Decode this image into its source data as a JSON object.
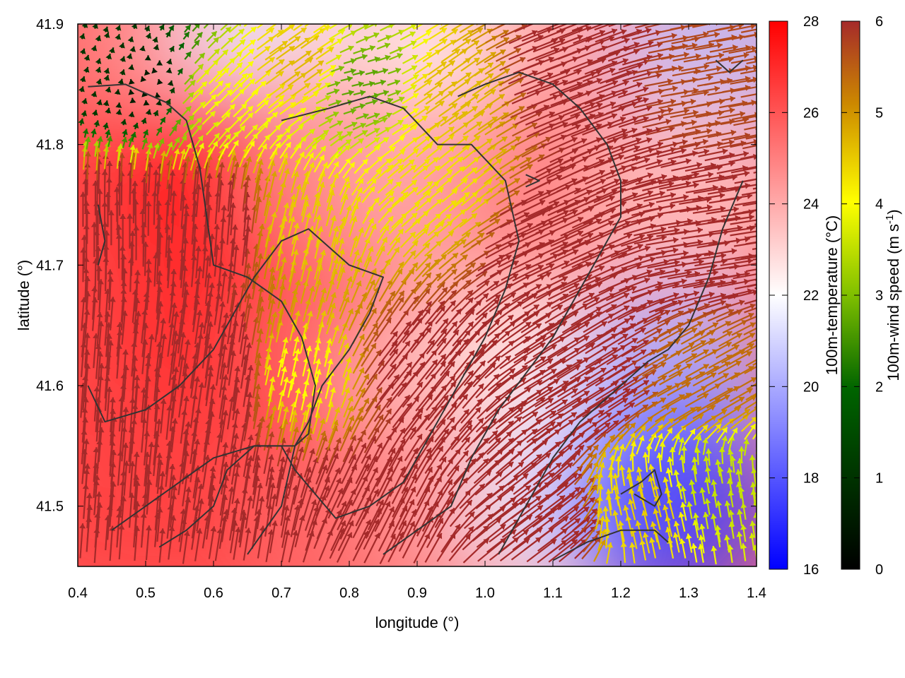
{
  "chart_data": {
    "type": "heatmap",
    "title": "",
    "xlabel": "longitude (°)",
    "ylabel": "latitude (°)",
    "xlim": [
      0.4,
      1.4
    ],
    "ylim": [
      41.45,
      41.9
    ],
    "x_ticks": [
      "0.4",
      "0.5",
      "0.6",
      "0.7",
      "0.8",
      "0.9",
      "1.0",
      "1.1",
      "1.2",
      "1.3",
      "1.4"
    ],
    "y_ticks": [
      "41.5",
      "41.6",
      "41.7",
      "41.8",
      "41.9"
    ],
    "grid": false,
    "temperature_colorbar": {
      "label": "100m-temperature (°C)",
      "range": [
        16,
        28
      ],
      "ticks": [
        "16",
        "18",
        "20",
        "22",
        "24",
        "26",
        "28"
      ],
      "colors": [
        "#0000ff",
        "#ffffff",
        "#ff0000"
      ]
    },
    "wind_colorbar": {
      "label_main": "100m-wind speed (m s",
      "label_sup": "-1",
      "label_end": ")",
      "range": [
        0,
        6
      ],
      "ticks": [
        "0",
        "1",
        "2",
        "3",
        "4",
        "5",
        "6"
      ],
      "colors": [
        "#000000",
        "#006400",
        "#7fbf00",
        "#ffff00",
        "#cc8800",
        "#a52a2a"
      ]
    },
    "temperature_field": [
      {
        "lon": 0.45,
        "lat": 41.86,
        "t": 26.0
      },
      {
        "lon": 0.55,
        "lat": 41.88,
        "t": 24.5
      },
      {
        "lon": 0.7,
        "lat": 41.89,
        "t": 21.5
      },
      {
        "lon": 0.85,
        "lat": 41.87,
        "t": 23.0
      },
      {
        "lon": 0.98,
        "lat": 41.86,
        "t": 22.5
      },
      {
        "lon": 1.15,
        "lat": 41.88,
        "t": 24.0
      },
      {
        "lon": 1.35,
        "lat": 41.88,
        "t": 20.5
      },
      {
        "lon": 0.45,
        "lat": 41.75,
        "t": 26.5
      },
      {
        "lon": 0.62,
        "lat": 41.76,
        "t": 27.5
      },
      {
        "lon": 0.8,
        "lat": 41.77,
        "t": 24.5
      },
      {
        "lon": 0.95,
        "lat": 41.75,
        "t": 24.0
      },
      {
        "lon": 1.1,
        "lat": 41.76,
        "t": 25.0
      },
      {
        "lon": 1.3,
        "lat": 41.75,
        "t": 23.5
      },
      {
        "lon": 0.45,
        "lat": 41.62,
        "t": 26.5
      },
      {
        "lon": 0.62,
        "lat": 41.65,
        "t": 27.0
      },
      {
        "lon": 0.8,
        "lat": 41.63,
        "t": 25.5
      },
      {
        "lon": 0.95,
        "lat": 41.6,
        "t": 23.5
      },
      {
        "lon": 1.1,
        "lat": 41.6,
        "t": 22.5
      },
      {
        "lon": 1.28,
        "lat": 41.6,
        "t": 20.0
      },
      {
        "lon": 0.45,
        "lat": 41.5,
        "t": 26.5
      },
      {
        "lon": 0.65,
        "lat": 41.5,
        "t": 26.5
      },
      {
        "lon": 0.8,
        "lat": 41.48,
        "t": 25.5
      },
      {
        "lon": 0.97,
        "lat": 41.49,
        "t": 24.5
      },
      {
        "lon": 1.12,
        "lat": 41.5,
        "t": 21.5
      },
      {
        "lon": 1.27,
        "lat": 41.5,
        "t": 17.5
      }
    ],
    "wind_field": [
      {
        "lon": 0.45,
        "lat": 41.86,
        "u": 0.2,
        "v": 0.6
      },
      {
        "lon": 0.5,
        "lat": 41.85,
        "u": -0.1,
        "v": 0.3
      },
      {
        "lon": 0.6,
        "lat": 41.84,
        "u": 2.5,
        "v": 2.5
      },
      {
        "lon": 0.72,
        "lat": 41.86,
        "u": 3.5,
        "v": 2.5
      },
      {
        "lon": 0.8,
        "lat": 41.85,
        "u": 2.0,
        "v": 0.5
      },
      {
        "lon": 0.95,
        "lat": 41.84,
        "u": 3.5,
        "v": 2.5
      },
      {
        "lon": 1.1,
        "lat": 41.85,
        "u": 6.5,
        "v": 2.5
      },
      {
        "lon": 1.3,
        "lat": 41.85,
        "u": 5.5,
        "v": 1.0
      },
      {
        "lon": 0.45,
        "lat": 41.72,
        "u": 0.0,
        "v": 7.0
      },
      {
        "lon": 0.6,
        "lat": 41.72,
        "u": 0.5,
        "v": 6.5
      },
      {
        "lon": 0.72,
        "lat": 41.72,
        "u": 1.0,
        "v": 4.0
      },
      {
        "lon": 0.92,
        "lat": 41.76,
        "u": 3.0,
        "v": 2.5
      },
      {
        "lon": 1.1,
        "lat": 41.72,
        "u": 6.5,
        "v": 3.0
      },
      {
        "lon": 1.3,
        "lat": 41.72,
        "u": 6.5,
        "v": 1.0
      },
      {
        "lon": 0.45,
        "lat": 41.58,
        "u": 0.5,
        "v": 7.0
      },
      {
        "lon": 0.6,
        "lat": 41.6,
        "u": 1.0,
        "v": 7.0
      },
      {
        "lon": 0.72,
        "lat": 41.6,
        "u": 0.8,
        "v": 3.5
      },
      {
        "lon": 0.9,
        "lat": 41.6,
        "u": 4.0,
        "v": 5.0
      },
      {
        "lon": 1.1,
        "lat": 41.6,
        "u": 6.5,
        "v": 4.0
      },
      {
        "lon": 1.3,
        "lat": 41.6,
        "u": 4.5,
        "v": 2.5
      },
      {
        "lon": 0.45,
        "lat": 41.48,
        "u": 0.5,
        "v": 7.0
      },
      {
        "lon": 0.62,
        "lat": 41.48,
        "u": 1.0,
        "v": 6.5
      },
      {
        "lon": 0.85,
        "lat": 41.48,
        "u": 3.0,
        "v": 6.0
      },
      {
        "lon": 1.05,
        "lat": 41.48,
        "u": 6.0,
        "v": 4.5
      },
      {
        "lon": 1.25,
        "lat": 41.49,
        "u": -1.0,
        "v": 4.0
      },
      {
        "lon": 1.33,
        "lat": 41.5,
        "u": -0.5,
        "v": 3.0
      }
    ],
    "contours": [
      [
        [
          0.415,
          41.848
        ],
        [
          0.47,
          41.85
        ],
        [
          0.53,
          41.835
        ],
        [
          0.56,
          41.82
        ],
        [
          0.58,
          41.78
        ],
        [
          0.6,
          41.7
        ],
        [
          0.65,
          41.69
        ],
        [
          0.7,
          41.67
        ],
        [
          0.73,
          41.64
        ],
        [
          0.75,
          41.6
        ],
        [
          0.74,
          41.56
        ],
        [
          0.72,
          41.55
        ],
        [
          0.66,
          41.55
        ],
        [
          0.6,
          41.54
        ],
        [
          0.55,
          41.52
        ],
        [
          0.5,
          41.5
        ],
        [
          0.45,
          41.48
        ]
      ],
      [
        [
          0.415,
          41.6
        ],
        [
          0.44,
          41.57
        ],
        [
          0.5,
          41.58
        ],
        [
          0.55,
          41.6
        ],
        [
          0.6,
          41.63
        ],
        [
          0.63,
          41.66
        ],
        [
          0.66,
          41.69
        ],
        [
          0.7,
          41.72
        ],
        [
          0.74,
          41.73
        ],
        [
          0.76,
          41.72
        ],
        [
          0.8,
          41.7
        ],
        [
          0.85,
          41.69
        ],
        [
          0.83,
          41.66
        ],
        [
          0.8,
          41.63
        ],
        [
          0.76,
          41.6
        ],
        [
          0.74,
          41.57
        ],
        [
          0.72,
          41.55
        ],
        [
          0.7,
          41.5
        ],
        [
          0.65,
          41.46
        ]
      ],
      [
        [
          0.52,
          41.466
        ],
        [
          0.56,
          41.48
        ],
        [
          0.6,
          41.5
        ],
        [
          0.62,
          41.53
        ],
        [
          0.66,
          41.55
        ],
        [
          0.7,
          41.55
        ],
        [
          0.72,
          41.53
        ],
        [
          0.75,
          41.51
        ],
        [
          0.78,
          41.49
        ],
        [
          0.83,
          41.5
        ],
        [
          0.88,
          41.52
        ],
        [
          0.92,
          41.56
        ],
        [
          0.96,
          41.6
        ],
        [
          1.0,
          41.64
        ],
        [
          1.03,
          41.68
        ],
        [
          1.05,
          41.72
        ],
        [
          1.03,
          41.77
        ],
        [
          0.98,
          41.8
        ],
        [
          0.93,
          41.8
        ],
        [
          0.88,
          41.83
        ],
        [
          0.83,
          41.84
        ],
        [
          0.77,
          41.83
        ],
        [
          0.7,
          41.82
        ]
      ],
      [
        [
          0.85,
          41.46
        ],
        [
          0.9,
          41.48
        ],
        [
          0.95,
          41.5
        ],
        [
          0.98,
          41.54
        ],
        [
          1.02,
          41.58
        ],
        [
          1.06,
          41.61
        ],
        [
          1.1,
          41.64
        ],
        [
          1.13,
          41.67
        ],
        [
          1.16,
          41.7
        ],
        [
          1.2,
          41.74
        ],
        [
          1.2,
          41.77
        ],
        [
          1.18,
          41.8
        ],
        [
          1.14,
          41.83
        ],
        [
          1.1,
          41.85
        ],
        [
          1.05,
          41.86
        ],
        [
          1.0,
          41.85
        ],
        [
          0.96,
          41.84
        ]
      ],
      [
        [
          1.02,
          41.46
        ],
        [
          1.06,
          41.5
        ],
        [
          1.1,
          41.54
        ],
        [
          1.14,
          41.57
        ],
        [
          1.2,
          41.6
        ],
        [
          1.24,
          41.62
        ],
        [
          1.27,
          41.63
        ],
        [
          1.3,
          41.65
        ],
        [
          1.33,
          41.69
        ],
        [
          1.35,
          41.73
        ],
        [
          1.38,
          41.77
        ]
      ],
      [
        [
          1.1,
          41.455
        ],
        [
          1.15,
          41.47
        ],
        [
          1.2,
          41.48
        ],
        [
          1.25,
          41.48
        ],
        [
          1.27,
          41.47
        ]
      ],
      [
        [
          1.2,
          41.51
        ],
        [
          1.23,
          41.52
        ],
        [
          1.25,
          41.53
        ],
        [
          1.26,
          41.51
        ],
        [
          1.25,
          41.5
        ],
        [
          1.22,
          41.51
        ]
      ],
      [
        [
          1.34,
          41.87
        ],
        [
          1.36,
          41.86
        ],
        [
          1.38,
          41.87
        ]
      ],
      [
        [
          0.43,
          41.75
        ],
        [
          0.44,
          41.72
        ],
        [
          0.43,
          41.7
        ]
      ],
      [
        [
          1.06,
          41.775
        ],
        [
          1.08,
          41.77
        ],
        [
          1.06,
          41.765
        ]
      ]
    ]
  }
}
